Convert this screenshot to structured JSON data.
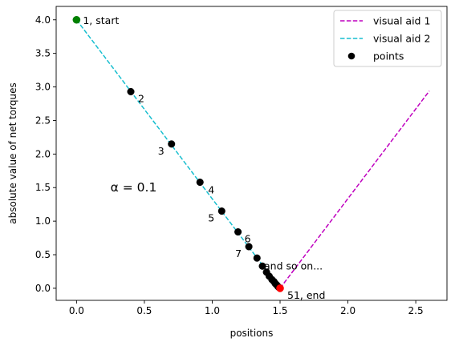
{
  "chart_data": {
    "type": "scatter",
    "xlabel": "positions",
    "ylabel": "absolute value of net torques",
    "xlim": [
      -0.15,
      2.73
    ],
    "ylim": [
      -0.18,
      4.2
    ],
    "xticks": [
      0.0,
      0.5,
      1.0,
      1.5,
      2.0,
      2.5
    ],
    "xtick_labels": [
      "0.0",
      "0.5",
      "1.0",
      "1.5",
      "2.0",
      "2.5"
    ],
    "yticks": [
      0.0,
      0.5,
      1.0,
      1.5,
      2.0,
      2.5,
      3.0,
      3.5,
      4.0
    ],
    "ytick_labels": [
      "0.0",
      "0.5",
      "1.0",
      "1.5",
      "2.0",
      "2.5",
      "3.0",
      "3.5",
      "4.0"
    ],
    "grid": false,
    "legend_position": "top-right",
    "series": [
      {
        "name": "visual aid 1",
        "kind": "dashed-line",
        "color": "#bf00bf",
        "x": [
          1.5,
          2.6
        ],
        "y": [
          0.0,
          2.94
        ]
      },
      {
        "name": "visual aid 2",
        "kind": "dashed-line",
        "color": "#17becf",
        "x": [
          0.0,
          1.5
        ],
        "y": [
          4.0,
          0.0
        ]
      },
      {
        "name": "points",
        "kind": "scatter",
        "color": "#000000",
        "x": [
          0.0,
          0.4,
          0.7,
          0.91,
          1.07,
          1.19,
          1.27,
          1.33,
          1.37,
          1.4,
          1.42,
          1.44,
          1.455,
          1.465,
          1.475,
          1.483,
          1.49,
          1.5
        ],
        "y": [
          4.0,
          2.93,
          2.15,
          1.58,
          1.15,
          0.84,
          0.62,
          0.45,
          0.33,
          0.24,
          0.18,
          0.13,
          0.1,
          0.07,
          0.05,
          0.03,
          0.015,
          0.0
        ]
      }
    ],
    "highlight_points": [
      {
        "x": 0.0,
        "y": 4.0,
        "color": "#008000"
      },
      {
        "x": 1.5,
        "y": 0.0,
        "color": "#ff0000"
      }
    ],
    "annotations": [
      {
        "text": "1, start",
        "x": 0.0,
        "y": 4.0,
        "dx": 8,
        "dy": 1
      },
      {
        "text": "2",
        "x": 0.4,
        "y": 2.93,
        "dx": 9,
        "dy": 9
      },
      {
        "text": "3",
        "x": 0.7,
        "y": 2.15,
        "dx": -17,
        "dy": 9
      },
      {
        "text": "4",
        "x": 0.91,
        "y": 1.58,
        "dx": 10,
        "dy": 10
      },
      {
        "text": "5",
        "x": 1.07,
        "y": 1.15,
        "dx": -17,
        "dy": 9
      },
      {
        "text": "6",
        "x": 1.19,
        "y": 0.84,
        "dx": 8,
        "dy": 9
      },
      {
        "text": "7",
        "x": 1.27,
        "y": 0.62,
        "dx": -17,
        "dy": 9
      },
      {
        "text": "and so on...",
        "x": 1.37,
        "y": 0.33,
        "dx": 2,
        "dy": 0
      },
      {
        "text": "51, end",
        "x": 1.5,
        "y": 0.0,
        "dx": 9,
        "dy": 9
      }
    ],
    "alpha_label": {
      "text": "α = 0.1",
      "x": 0.25,
      "y": 1.5
    }
  }
}
